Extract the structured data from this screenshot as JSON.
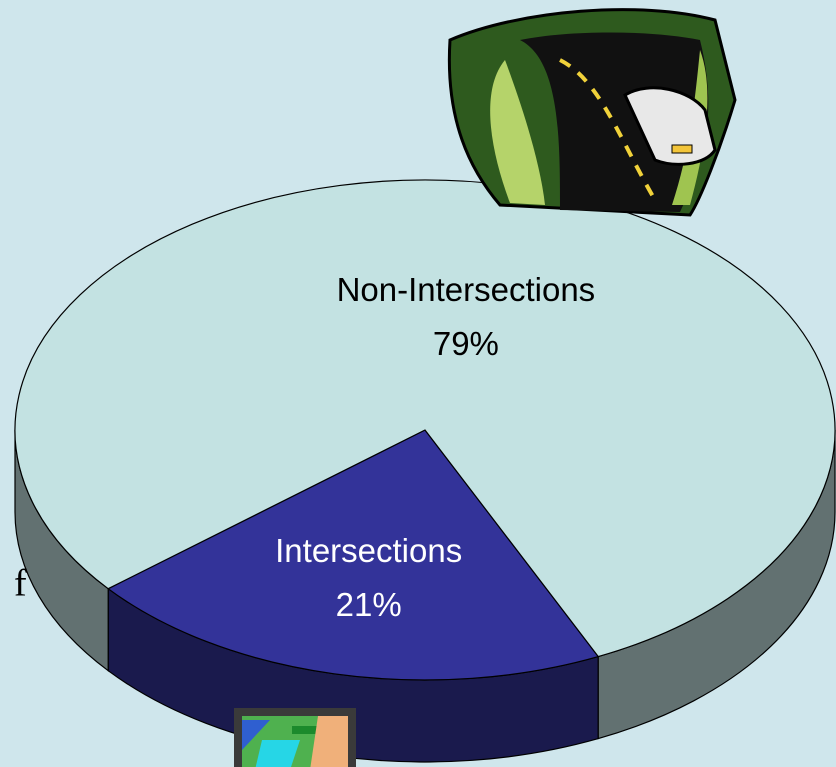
{
  "chart_data": {
    "type": "pie3d",
    "categories": [
      "Intersections",
      "Non-Intersections"
    ],
    "values": [
      21,
      79
    ],
    "value_labels": [
      "21%",
      "79%"
    ],
    "colors": [
      "#333399",
      "#c3e2e2"
    ],
    "side_text": "f"
  }
}
